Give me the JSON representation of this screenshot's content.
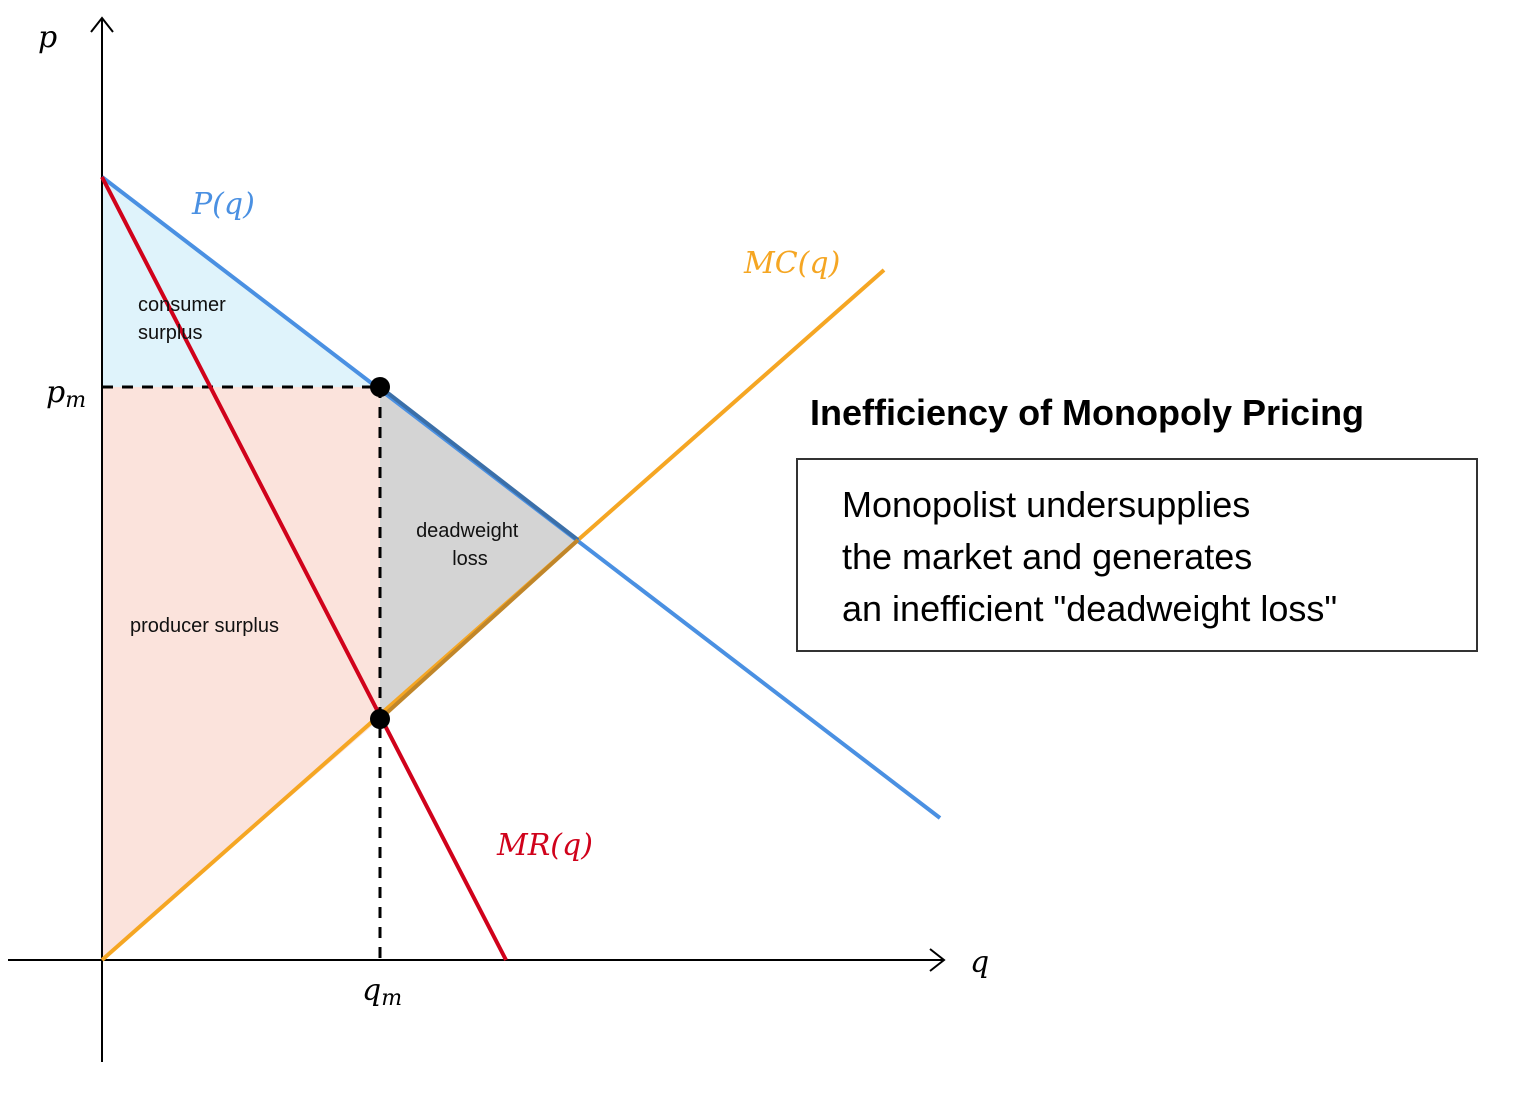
{
  "axes": {
    "y_label": "p",
    "x_label": "q"
  },
  "ticks": {
    "price": {
      "base": "p",
      "sub": "m"
    },
    "quantity": {
      "base": "q",
      "sub": "m"
    }
  },
  "curves": {
    "demand": {
      "label": "P(q)",
      "color": "#4a90e2"
    },
    "marginal_cost": {
      "label": "MC(q)",
      "color": "#f5a623"
    },
    "marginal_revenue": {
      "label": "MR(q)",
      "color": "#d0021b"
    }
  },
  "regions": {
    "consumer_surplus": {
      "lines": [
        "consumer",
        "surplus"
      ],
      "color": "#dff3fb"
    },
    "producer_surplus": {
      "lines": [
        "producer surplus"
      ],
      "color": "#fbe3dc"
    },
    "deadweight_loss": {
      "lines": [
        "deadweight",
        "loss"
      ],
      "color": "#d4d4d4"
    }
  },
  "title": "Inefficiency of Monopoly Pricing",
  "note": {
    "lines": [
      "Monopolist undersupplies",
      "the market and generates",
      "an inefficient \"deadweight loss\""
    ]
  }
}
